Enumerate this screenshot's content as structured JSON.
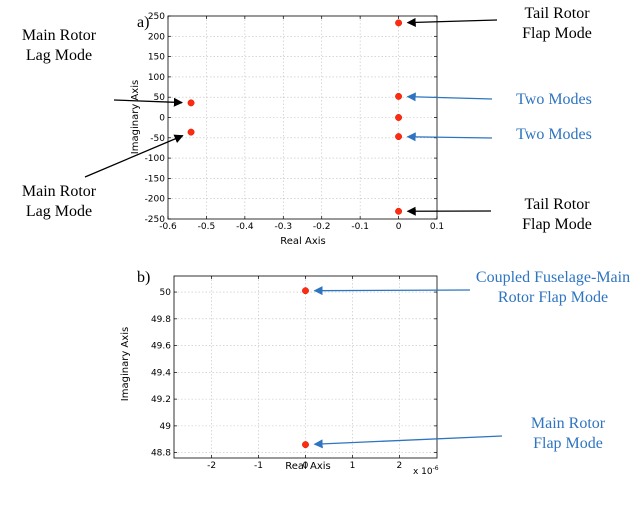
{
  "chart_data": [
    {
      "type": "scatter",
      "panel_label": "a)",
      "xlabel": "Real Axis",
      "ylabel": "Imaginary Axis",
      "xlim": [
        -0.6,
        0.1
      ],
      "ylim": [
        -250,
        250
      ],
      "xticks": [
        -0.6,
        -0.5,
        -0.4,
        -0.3,
        -0.2,
        -0.1,
        0,
        0.1
      ],
      "xtick_labels": [
        "-0.6",
        "-0.5",
        "-0.4",
        "-0.3",
        "-0.2",
        "-0.1",
        "0",
        "0.1"
      ],
      "yticks": [
        250,
        200,
        150,
        100,
        50,
        0,
        -50,
        -100,
        -150,
        -200,
        -250
      ],
      "ytick_labels": [
        "250",
        "200",
        "150",
        "100",
        "50",
        "0",
        "-50",
        "-100",
        "-150",
        "-200",
        "-250"
      ],
      "grid": true,
      "points": [
        {
          "x": -0.54,
          "y": 36
        },
        {
          "x": -0.54,
          "y": -36
        },
        {
          "x": 0,
          "y": 233
        },
        {
          "x": 0,
          "y": 52
        },
        {
          "x": 0,
          "y": 0
        },
        {
          "x": 0,
          "y": -47
        },
        {
          "x": 0,
          "y": -231
        }
      ],
      "annotations": [
        {
          "lines": [
            "Main Rotor",
            "Lag Mode"
          ],
          "color": "#000000",
          "target": {
            "x": -0.54,
            "y": 36
          }
        },
        {
          "lines": [
            "Main Rotor",
            "Lag Mode"
          ],
          "color": "#000000",
          "target": {
            "x": -0.54,
            "y": -36
          }
        },
        {
          "lines": [
            "Tail Rotor",
            "Flap Mode"
          ],
          "color": "#000000",
          "target": {
            "x": 0,
            "y": 233
          }
        },
        {
          "lines": [
            "Two Modes"
          ],
          "color": "#2e74c0",
          "target": {
            "x": 0,
            "y": 52
          }
        },
        {
          "lines": [
            "Two Modes"
          ],
          "color": "#2e74c0",
          "target": {
            "x": 0,
            "y": -47
          }
        },
        {
          "lines": [
            "Tail Rotor",
            "Flap Mode"
          ],
          "color": "#000000",
          "target": {
            "x": 0,
            "y": -231
          }
        }
      ]
    },
    {
      "type": "scatter",
      "panel_label": "b)",
      "xlabel": "Real Axis",
      "ylabel": "Imaginary Axis",
      "x_multiplier": "x 10",
      "x_multiplier_exp": "-6",
      "xlim": [
        -2.8,
        2.8
      ],
      "ylim": [
        48.76,
        50.12
      ],
      "xticks": [
        -2,
        -1,
        0,
        1,
        2
      ],
      "xtick_labels": [
        "-2",
        "-1",
        "0",
        "1",
        "2"
      ],
      "yticks": [
        50,
        49.8,
        49.6,
        49.4,
        49.2,
        49,
        48.8
      ],
      "ytick_labels": [
        "50",
        "49.8",
        "49.6",
        "49.4",
        "49.2",
        "49",
        "48.8"
      ],
      "grid": true,
      "points": [
        {
          "x": 0,
          "y": 50.01
        },
        {
          "x": 0,
          "y": 48.86
        }
      ],
      "annotations": [
        {
          "lines": [
            "Coupled Fuselage-Main",
            "Rotor Flap Mode"
          ],
          "color": "#2e74c0",
          "target": {
            "x": 0,
            "y": 50.01
          }
        },
        {
          "lines": [
            "Main Rotor",
            "Flap Mode"
          ],
          "color": "#2e74c0",
          "target": {
            "x": 0,
            "y": 48.86
          }
        }
      ]
    }
  ]
}
